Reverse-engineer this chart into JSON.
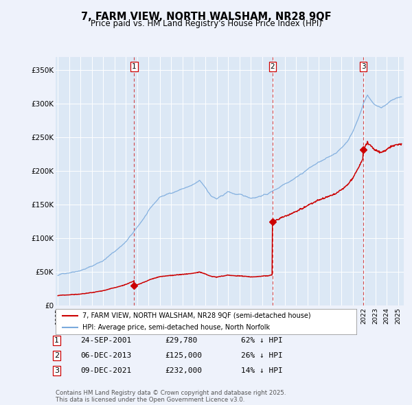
{
  "title": "7, FARM VIEW, NORTH WALSHAM, NR28 9QF",
  "subtitle": "Price paid vs. HM Land Registry's House Price Index (HPI)",
  "background_color": "#eef2fb",
  "plot_bg_color": "#dce8f5",
  "legend_line1": "7, FARM VIEW, NORTH WALSHAM, NR28 9QF (semi-detached house)",
  "legend_line2": "HPI: Average price, semi-detached house, North Norfolk",
  "sale_color": "#cc0000",
  "hpi_color": "#7aaadd",
  "dashed_line_color": "#cc0000",
  "purchases": [
    {
      "label": "1",
      "date_str": "24-SEP-2001",
      "date_x": 2001.73,
      "price": 29780,
      "hpi_pct": "62% ↓ HPI"
    },
    {
      "label": "2",
      "date_str": "06-DEC-2013",
      "date_x": 2013.93,
      "price": 125000,
      "hpi_pct": "26% ↓ HPI"
    },
    {
      "label": "3",
      "date_str": "09-DEC-2021",
      "date_x": 2021.93,
      "price": 232000,
      "hpi_pct": "14% ↓ HPI"
    }
  ],
  "ylim": [
    0,
    370000
  ],
  "yticks": [
    0,
    50000,
    100000,
    150000,
    200000,
    250000,
    300000,
    350000
  ],
  "ytick_labels": [
    "£0",
    "£50K",
    "£100K",
    "£150K",
    "£200K",
    "£250K",
    "£300K",
    "£350K"
  ],
  "xlim": [
    1994.8,
    2025.5
  ],
  "xticks": [
    1995,
    1996,
    1997,
    1998,
    1999,
    2000,
    2001,
    2002,
    2003,
    2004,
    2005,
    2006,
    2007,
    2008,
    2009,
    2010,
    2011,
    2012,
    2013,
    2014,
    2015,
    2016,
    2017,
    2018,
    2019,
    2020,
    2021,
    2022,
    2023,
    2024,
    2025
  ],
  "footnote": "Contains HM Land Registry data © Crown copyright and database right 2025.\nThis data is licensed under the Open Government Licence v3.0.",
  "hpi_seed": 12,
  "sale_seed": 99
}
